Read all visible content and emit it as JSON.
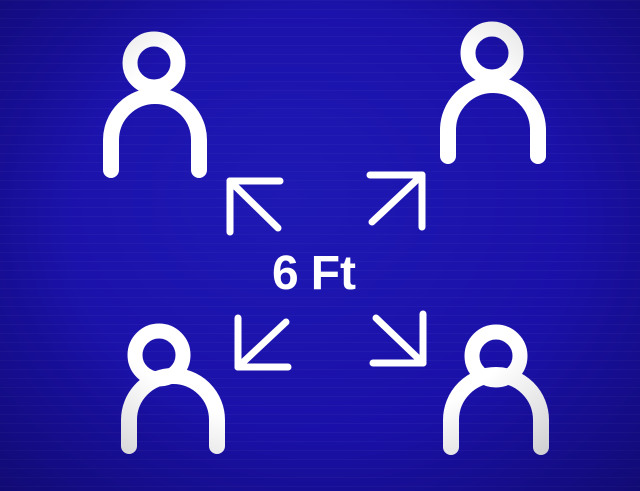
{
  "sign": {
    "background_color": "#1a10a8",
    "symbol_color": "#ffffff",
    "distance_value": "6",
    "distance_unit": "Ft",
    "icons": [
      "person-icon",
      "person-icon",
      "person-icon",
      "person-icon",
      "arrow-up-left-icon",
      "arrow-up-right-icon",
      "arrow-down-left-icon",
      "arrow-down-right-icon"
    ]
  }
}
